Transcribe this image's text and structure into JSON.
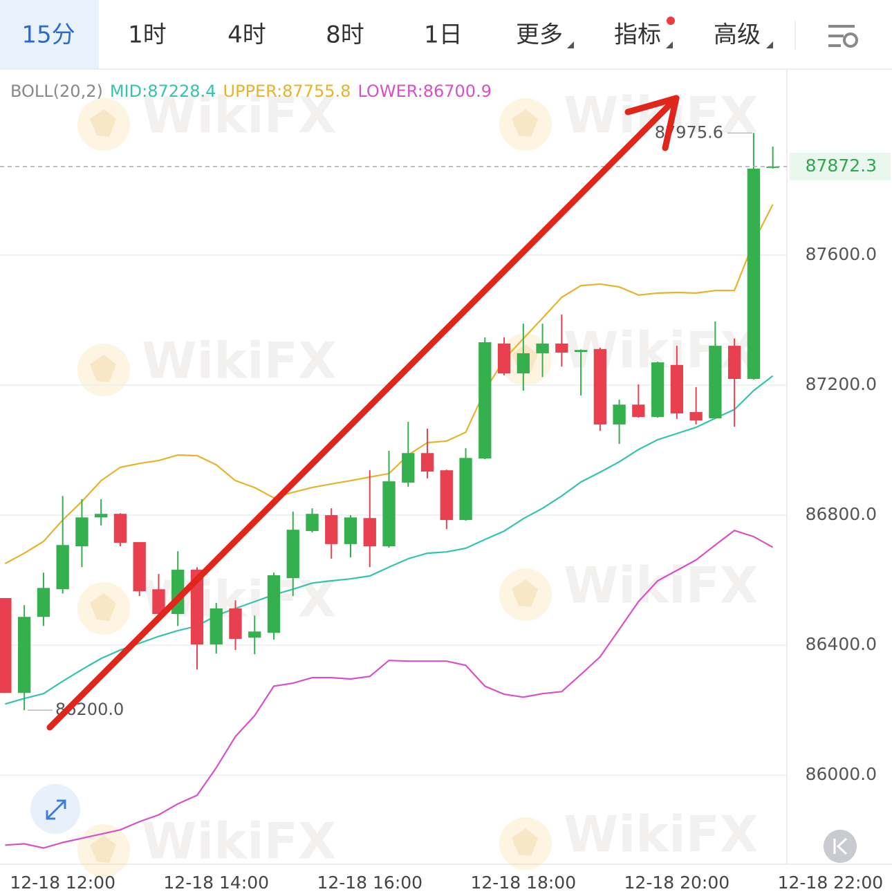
{
  "tabs": [
    "15分",
    "1时",
    "4时",
    "8时",
    "1日",
    "更多",
    "指标",
    "高级"
  ],
  "chart_data": {
    "type": "candlestick",
    "indicator": "BOLL(20,2)",
    "watermark": "WikiFX",
    "x": [
      "12-18 11:15",
      "12-18 11:30",
      "12-18 11:45",
      "12-18 12:00",
      "12-18 12:15",
      "12-18 12:30",
      "12-18 12:45",
      "12-18 13:00",
      "12-18 13:15",
      "12-18 13:30",
      "12-18 13:45",
      "12-18 14:00",
      "12-18 14:15",
      "12-18 14:30",
      "12-18 14:45",
      "12-18 15:00",
      "12-18 15:15",
      "12-18 15:30",
      "12-18 15:45",
      "12-18 16:00",
      "12-18 16:15",
      "12-18 16:30",
      "12-18 16:45",
      "12-18 17:00",
      "12-18 17:15",
      "12-18 17:30",
      "12-18 17:45",
      "12-18 18:00",
      "12-18 18:15",
      "12-18 18:30",
      "12-18 18:45",
      "12-18 19:00",
      "12-18 19:15",
      "12-18 19:30",
      "12-18 19:45",
      "12-18 20:00",
      "12-18 20:15",
      "12-18 20:30",
      "12-18 20:45",
      "12-18 21:00",
      "12-18 21:15"
    ],
    "open": [
      86545,
      86253,
      86487,
      86572,
      86704,
      86793,
      86804,
      86717,
      86572,
      86496,
      86632,
      86402,
      86513,
      86423,
      86438,
      86606,
      86751,
      86800,
      86711,
      86791,
      86704,
      86900,
      86991,
      86938,
      86785,
      86974,
      87328,
      87236,
      87298,
      87328,
      87302,
      87311,
      87079,
      87140,
      87102,
      87262,
      87117,
      87098,
      87321,
      87219,
      87870
    ],
    "high": [
      86545,
      86523,
      86623,
      86859,
      86849,
      86849,
      86806,
      86717,
      86619,
      86689,
      86640,
      86530,
      86538,
      86491,
      86623,
      86811,
      86821,
      86821,
      86800,
      86938,
      86998,
      87087,
      87066,
      86940,
      87006,
      87347,
      87347,
      87389,
      87389,
      87417,
      87310,
      87315,
      87155,
      87202,
      87272,
      87321,
      87194,
      87396,
      87343,
      87975.6,
      87934
    ],
    "low": [
      86253,
      86200.0,
      86459,
      86559,
      86640,
      86768,
      86704,
      86551,
      86494,
      86459,
      86325,
      86374,
      86385,
      86372,
      86417,
      86551,
      86747,
      86666,
      86670,
      86640,
      86700,
      86887,
      86913,
      86757,
      86783,
      86972,
      87230,
      87183,
      87225,
      87257,
      87168,
      87059,
      87019,
      87100,
      87100,
      87096,
      87079,
      87096,
      87072,
      87217,
      87866
    ],
    "close": [
      86253,
      86487,
      86576,
      86708,
      86793,
      86804,
      86715,
      86566,
      86496,
      86632,
      86402,
      86513,
      86419,
      86442,
      86615,
      86755,
      86804,
      86711,
      86793,
      86704,
      86904,
      86991,
      86934,
      86785,
      86976,
      87332,
      87236,
      87298,
      87328,
      87300,
      87308,
      87079,
      87140,
      87102,
      87270,
      87113,
      87091,
      87321,
      87219,
      87866,
      87872.3
    ],
    "up_color": "#34b04f",
    "down_color": "#e8404f",
    "series": [
      {
        "label": "MID:87228.4",
        "color": "#33c4b0",
        "values": [
          86219,
          86236,
          86251,
          86289,
          86325,
          86359,
          86385,
          86406,
          86427,
          86445,
          86459,
          86491,
          86513,
          86534,
          86555,
          86572,
          86591,
          86598,
          86604,
          86613,
          86640,
          86666,
          86683,
          86687,
          86698,
          86725,
          86751,
          86789,
          86821,
          86859,
          86902,
          86932,
          86964,
          87002,
          87032,
          87051,
          87070,
          87098,
          87125,
          87183,
          87228.4
        ]
      },
      {
        "label": "UPPER:87755.8",
        "color": "#e8b22a",
        "values": [
          86651,
          86683,
          86719,
          86785,
          86842,
          86906,
          86947,
          86959,
          86968,
          86985,
          86983,
          86955,
          86906,
          86885,
          86853,
          86870,
          86885,
          86896,
          86906,
          86917,
          86928,
          86985,
          87023,
          87028,
          87055,
          87183,
          87279,
          87343,
          87406,
          87470,
          87506,
          87511,
          87502,
          87477,
          87483,
          87485,
          87483,
          87491,
          87491,
          87640,
          87755.8
        ]
      },
      {
        "label": "LOWER:86700.9",
        "color": "#d94fc8",
        "values": [
          85785,
          85789,
          85776,
          85793,
          85806,
          85819,
          85832,
          85857,
          85878,
          85912,
          85938,
          86023,
          86119,
          86183,
          86274,
          86283,
          86300,
          86300,
          86296,
          86304,
          86353,
          86351,
          86351,
          86351,
          86338,
          86274,
          86249,
          86240,
          86251,
          86257,
          86310,
          86364,
          86449,
          86534,
          86598,
          86630,
          86662,
          86708,
          86753,
          86734,
          86700.9
        ]
      }
    ],
    "ylim": [
      85726,
      88172
    ],
    "yticks": [
      {
        "value": 86000,
        "label": "86000.0"
      },
      {
        "value": 86400,
        "label": "86400.0"
      },
      {
        "value": 86800,
        "label": "86800.0"
      },
      {
        "value": 87200,
        "label": "87200.0"
      },
      {
        "value": 87600,
        "label": "87600.0"
      }
    ],
    "xlim": [
      "12-18 11:11",
      "12-18 21:26"
    ],
    "xticks": [
      "12-18 12:00",
      "12-18 14:00",
      "12-18 16:00",
      "12-18 18:00",
      "12-18 20:00",
      "12-18 22:00"
    ],
    "grid": true,
    "last_price": {
      "value": 87872.3,
      "label": "87872.3"
    },
    "high_label": {
      "value": 87975.6,
      "label": "87975.6"
    },
    "low_label": {
      "value": 86200.0,
      "label": "86200.0"
    }
  }
}
